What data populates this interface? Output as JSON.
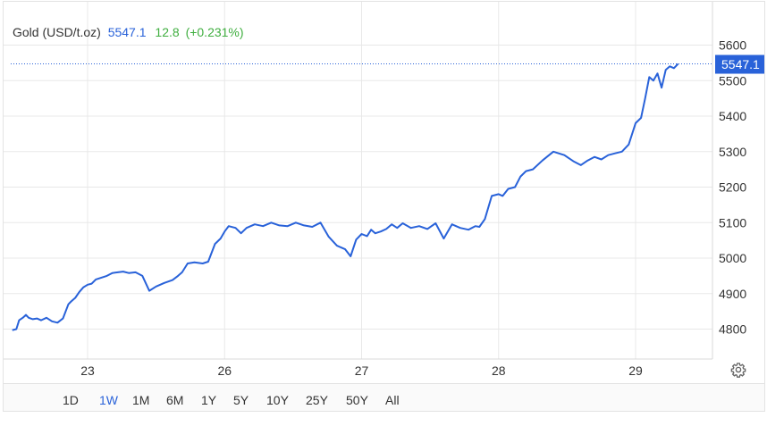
{
  "header": {
    "instrument": "Gold (USD/t.oz)",
    "price": "5547.1",
    "change": "12.8",
    "change_pct": "(+0.231%)"
  },
  "last_price_label": "5547.1",
  "colors": {
    "line": "#2962d9",
    "positive": "#3fae3f",
    "price_tag": "#2962d9",
    "grid": "#e8e8e8"
  },
  "range_buttons": [
    {
      "label": "1D",
      "active": false
    },
    {
      "label": "1W",
      "active": true
    },
    {
      "label": "1M",
      "active": false
    },
    {
      "label": "6M",
      "active": false
    },
    {
      "label": "1Y",
      "active": false
    },
    {
      "label": "5Y",
      "active": false
    },
    {
      "label": "10Y",
      "active": false
    },
    {
      "label": "25Y",
      "active": false
    },
    {
      "label": "50Y",
      "active": false
    },
    {
      "label": "All",
      "active": false
    }
  ],
  "settings_icon": "gear-icon",
  "chart_data": {
    "type": "line",
    "title": "",
    "xlabel": "",
    "ylabel": "",
    "y_axis_position": "right",
    "ylim": [
      4720,
      5640
    ],
    "y_ticks": [
      4800,
      4900,
      5000,
      5100,
      5200,
      5300,
      5400,
      5500,
      5600
    ],
    "x_ticks": [
      {
        "label": "23",
        "x": 0.0
      },
      {
        "label": "26",
        "x": 1.0
      },
      {
        "label": "27",
        "x": 2.0
      },
      {
        "label": "28",
        "x": 3.0
      },
      {
        "label": "29",
        "x": 4.0
      }
    ],
    "grid": true,
    "last_value": 5547.1,
    "series": [
      {
        "x": [
          -0.55,
          -0.52,
          -0.5,
          -0.47,
          -0.45,
          -0.43,
          -0.4,
          -0.37,
          -0.34,
          -0.3,
          -0.26,
          -0.22,
          -0.18,
          -0.14,
          -0.12,
          -0.09,
          -0.06,
          -0.03,
          0.0,
          0.03,
          0.06,
          0.1,
          0.14,
          0.18,
          0.22,
          0.26,
          0.3,
          0.35,
          0.4,
          0.45,
          0.5,
          0.56,
          0.62,
          0.66,
          0.69,
          0.73,
          0.78,
          0.84,
          0.88,
          0.93,
          0.97,
          1.0,
          1.03,
          1.08,
          1.12,
          1.16,
          1.22,
          1.28,
          1.34,
          1.4,
          1.46,
          1.52,
          1.58,
          1.64,
          1.7,
          1.76,
          1.82,
          1.88,
          1.92,
          1.96,
          2.0,
          2.04,
          2.07,
          2.1,
          2.14,
          2.18,
          2.22,
          2.26,
          2.3,
          2.36,
          2.42,
          2.48,
          2.54,
          2.6,
          2.66,
          2.72,
          2.78,
          2.83,
          2.86,
          2.9,
          2.95,
          3.0,
          3.03,
          3.07,
          3.12,
          3.16,
          3.2,
          3.25,
          3.32,
          3.4,
          3.48,
          3.55,
          3.6,
          3.65,
          3.7,
          3.75,
          3.8,
          3.85,
          3.9,
          3.95,
          4.0,
          4.04,
          4.07,
          4.1,
          4.13,
          4.16,
          4.19,
          4.22,
          4.25,
          4.28,
          4.31
        ],
        "y": [
          4797,
          4800,
          4825,
          4833,
          4840,
          4832,
          4828,
          4830,
          4825,
          4832,
          4822,
          4818,
          4830,
          4870,
          4878,
          4888,
          4905,
          4918,
          4925,
          4928,
          4940,
          4945,
          4950,
          4958,
          4960,
          4962,
          4958,
          4960,
          4950,
          4908,
          4920,
          4930,
          4938,
          4950,
          4960,
          4985,
          4988,
          4985,
          4990,
          5040,
          5055,
          5075,
          5090,
          5085,
          5070,
          5085,
          5095,
          5090,
          5100,
          5092,
          5090,
          5100,
          5092,
          5088,
          5100,
          5060,
          5035,
          5025,
          5005,
          5052,
          5068,
          5062,
          5080,
          5070,
          5075,
          5082,
          5095,
          5085,
          5098,
          5085,
          5090,
          5082,
          5098,
          5055,
          5095,
          5085,
          5080,
          5090,
          5088,
          5110,
          5175,
          5180,
          5175,
          5195,
          5200,
          5230,
          5245,
          5250,
          5275,
          5300,
          5290,
          5272,
          5262,
          5275,
          5285,
          5278,
          5290,
          5295,
          5300,
          5320,
          5380,
          5395,
          5450,
          5510,
          5500,
          5520,
          5480,
          5530,
          5540,
          5535,
          5547.1
        ]
      }
    ]
  }
}
